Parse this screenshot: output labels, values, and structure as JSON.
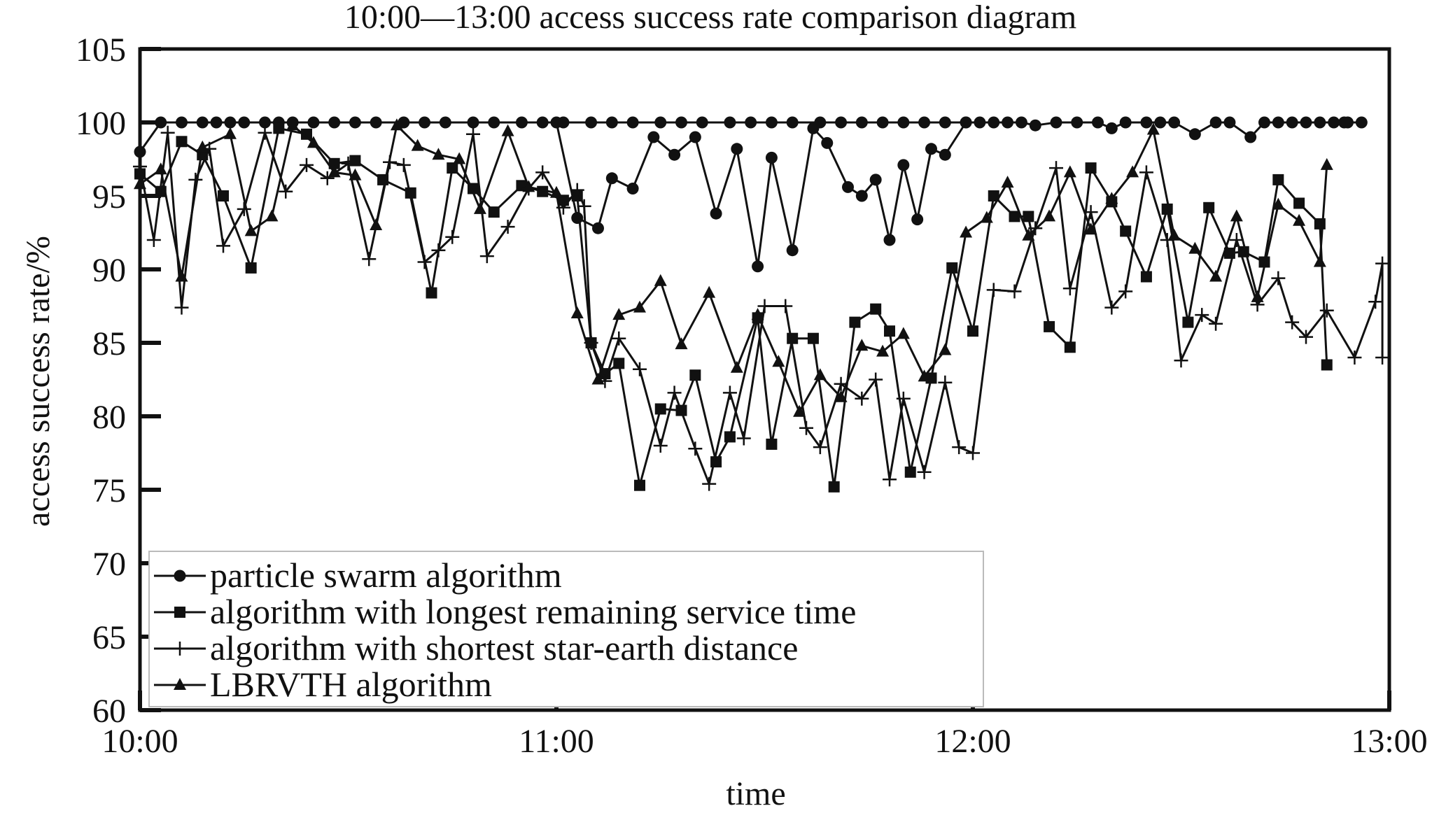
{
  "chart_data": {
    "type": "line",
    "title": "10:00—13:00 access success rate comparison diagram",
    "xlabel": "time",
    "ylabel": "access success rate/%",
    "x_ticks": [
      "10:00",
      "11:00",
      "12:00",
      "13:00"
    ],
    "x_unit": "minutes after 10:00",
    "xlim": [
      0,
      180
    ],
    "ylim": [
      60,
      105
    ],
    "y_ticks": [
      60,
      65,
      70,
      75,
      80,
      85,
      90,
      95,
      100,
      105
    ],
    "grid": false,
    "legend_position": "bottom-left",
    "series": [
      {
        "name": "particle swarm algorithm",
        "marker": "circle",
        "points": [
          [
            0,
            98
          ],
          [
            3,
            100
          ],
          [
            6,
            100
          ],
          [
            9,
            100
          ],
          [
            11,
            100
          ],
          [
            13,
            100
          ],
          [
            15,
            100
          ],
          [
            18,
            100
          ],
          [
            20,
            100
          ],
          [
            22,
            100
          ],
          [
            25,
            100
          ],
          [
            28,
            100
          ],
          [
            31,
            100
          ],
          [
            34,
            100
          ],
          [
            38,
            100
          ],
          [
            41,
            100
          ],
          [
            44,
            100
          ],
          [
            48,
            100
          ],
          [
            51,
            100
          ],
          [
            55,
            100
          ],
          [
            58,
            100
          ],
          [
            61,
            100
          ],
          [
            65,
            100
          ],
          [
            68,
            100
          ],
          [
            71,
            100
          ],
          [
            75,
            100
          ],
          [
            78,
            100
          ],
          [
            81,
            100
          ],
          [
            85,
            100
          ],
          [
            88,
            100
          ],
          [
            91,
            100
          ],
          [
            94,
            100
          ],
          [
            98,
            100
          ],
          [
            101,
            100
          ],
          [
            104,
            100
          ],
          [
            107,
            100
          ],
          [
            110,
            100
          ],
          [
            113,
            100
          ],
          [
            116,
            100
          ],
          [
            119,
            100
          ],
          [
            60,
            100
          ],
          [
            63,
            93.5
          ],
          [
            66,
            92.8
          ],
          [
            68,
            96.2
          ],
          [
            71,
            95.5
          ],
          [
            74,
            99
          ],
          [
            77,
            97.8
          ],
          [
            80,
            99
          ],
          [
            83,
            93.8
          ],
          [
            86,
            98.2
          ],
          [
            89,
            90.2
          ],
          [
            91,
            97.6
          ],
          [
            94,
            91.3
          ],
          [
            97,
            99.6
          ],
          [
            99,
            98.6
          ],
          [
            102,
            95.6
          ],
          [
            104,
            95
          ],
          [
            106,
            96.1
          ],
          [
            108,
            92
          ],
          [
            110,
            97.1
          ],
          [
            112,
            93.4
          ],
          [
            114,
            98.2
          ],
          [
            116,
            97.8
          ],
          [
            119,
            100
          ],
          [
            121,
            100
          ],
          [
            123,
            100
          ],
          [
            125,
            100
          ],
          [
            127,
            100
          ],
          [
            129,
            99.8
          ],
          [
            132,
            100
          ],
          [
            135,
            100
          ],
          [
            138,
            100
          ],
          [
            140,
            99.6
          ],
          [
            142,
            100
          ],
          [
            145,
            100
          ],
          [
            147,
            100
          ],
          [
            149,
            100
          ],
          [
            152,
            99.2
          ],
          [
            155,
            100
          ],
          [
            157,
            100
          ],
          [
            160,
            99
          ],
          [
            162,
            100
          ],
          [
            164,
            100
          ],
          [
            166,
            100
          ],
          [
            168,
            100
          ],
          [
            170,
            100
          ],
          [
            172,
            100
          ],
          [
            174,
            100
          ],
          [
            176,
            100
          ],
          [
            173.5,
            100
          ]
        ]
      },
      {
        "name": "algorithm with longest remaining service time",
        "marker": "square",
        "points": [
          [
            0,
            96.5
          ],
          [
            3,
            95.3
          ],
          [
            6,
            98.7
          ],
          [
            9,
            97.8
          ],
          [
            12,
            95
          ],
          [
            16,
            90.1
          ],
          [
            20,
            99.6
          ],
          [
            24,
            99.2
          ],
          [
            28,
            97.2
          ],
          [
            31,
            97.4
          ],
          [
            35,
            96.1
          ],
          [
            39,
            95.2
          ],
          [
            42,
            88.4
          ],
          [
            45,
            96.9
          ],
          [
            48,
            95.5
          ],
          [
            51,
            93.9
          ],
          [
            55,
            95.7
          ],
          [
            58,
            95.3
          ],
          [
            61,
            94.7
          ],
          [
            63,
            95
          ],
          [
            65,
            85
          ],
          [
            67,
            82.9
          ],
          [
            69,
            83.6
          ],
          [
            72,
            75.3
          ],
          [
            75,
            80.5
          ],
          [
            78,
            80.4
          ],
          [
            80,
            82.8
          ],
          [
            83,
            76.9
          ],
          [
            85,
            78.6
          ],
          [
            89,
            86.7
          ],
          [
            91,
            78.1
          ],
          [
            94,
            85.3
          ],
          [
            97,
            85.3
          ],
          [
            100,
            75.2
          ],
          [
            103,
            86.4
          ],
          [
            106,
            87.3
          ],
          [
            108,
            85.8
          ],
          [
            111,
            76.2
          ],
          [
            114,
            82.6
          ],
          [
            117,
            90.1
          ],
          [
            120,
            85.8
          ],
          [
            123,
            95
          ],
          [
            126,
            93.6
          ],
          [
            128,
            93.6
          ],
          [
            131,
            86.1
          ],
          [
            134,
            84.7
          ],
          [
            137,
            96.9
          ],
          [
            140,
            94.6
          ],
          [
            142,
            92.6
          ],
          [
            145,
            89.5
          ],
          [
            148,
            94.1
          ],
          [
            151,
            86.4
          ],
          [
            154,
            94.2
          ],
          [
            157,
            91.1
          ],
          [
            159,
            91.2
          ],
          [
            162,
            90.5
          ],
          [
            164,
            96.1
          ],
          [
            167,
            94.5
          ],
          [
            170,
            93.1
          ],
          [
            171,
            83.5
          ]
        ]
      },
      {
        "name": "algorithm with shortest star-earth distance",
        "marker": "plus",
        "points": [
          [
            0,
            97
          ],
          [
            2,
            92
          ],
          [
            4,
            99.3
          ],
          [
            6,
            87.4
          ],
          [
            8,
            96.1
          ],
          [
            10,
            98.2
          ],
          [
            12,
            91.6
          ],
          [
            15,
            94.1
          ],
          [
            18,
            99.3
          ],
          [
            21,
            95.3
          ],
          [
            24,
            97.1
          ],
          [
            27,
            96.2
          ],
          [
            30,
            97.2
          ],
          [
            33,
            90.7
          ],
          [
            36,
            97.3
          ],
          [
            38,
            97.1
          ],
          [
            41,
            90.5
          ],
          [
            43,
            91.3
          ],
          [
            45,
            92.2
          ],
          [
            48,
            99.2
          ],
          [
            50,
            90.9
          ],
          [
            53,
            92.9
          ],
          [
            56,
            95.5
          ],
          [
            58,
            96.6
          ],
          [
            61,
            94.2
          ],
          [
            63,
            95.4
          ],
          [
            64,
            94.3
          ],
          [
            65,
            85
          ],
          [
            67,
            82.4
          ],
          [
            69,
            85.3
          ],
          [
            72,
            83.2
          ],
          [
            75,
            78
          ],
          [
            77,
            81.6
          ],
          [
            80,
            77.8
          ],
          [
            82,
            75.4
          ],
          [
            85,
            81.6
          ],
          [
            87,
            78.5
          ],
          [
            90,
            87.5
          ],
          [
            93,
            87.5
          ],
          [
            96,
            79.2
          ],
          [
            98,
            77.9
          ],
          [
            101,
            82.2
          ],
          [
            104,
            81.2
          ],
          [
            106,
            82.5
          ],
          [
            108,
            75.7
          ],
          [
            110,
            81.2
          ],
          [
            113,
            76.2
          ],
          [
            116,
            82.3
          ],
          [
            118,
            77.9
          ],
          [
            120,
            77.5
          ],
          [
            123,
            88.6
          ],
          [
            126,
            88.5
          ],
          [
            129,
            92.8
          ],
          [
            132,
            96.9
          ],
          [
            134,
            88.7
          ],
          [
            137,
            93.9
          ],
          [
            140,
            87.4
          ],
          [
            142,
            88.5
          ],
          [
            145,
            96.6
          ],
          [
            148,
            92
          ],
          [
            150,
            83.8
          ],
          [
            153,
            86.9
          ],
          [
            155,
            86.3
          ],
          [
            158,
            92
          ],
          [
            161,
            87.6
          ],
          [
            164,
            89.4
          ],
          [
            166,
            86.4
          ],
          [
            168,
            85.4
          ],
          [
            171,
            87.2
          ],
          [
            175,
            84
          ],
          [
            178,
            87.8
          ],
          [
            179,
            90.4
          ],
          [
            179,
            84
          ]
        ]
      },
      {
        "name": "LBRVTH algorithm",
        "marker": "triangle",
        "points": [
          [
            0,
            95.8
          ],
          [
            3,
            96.8
          ],
          [
            6,
            89.5
          ],
          [
            9,
            98.3
          ],
          [
            13,
            99.2
          ],
          [
            16,
            92.6
          ],
          [
            19,
            93.6
          ],
          [
            22,
            99.8
          ],
          [
            25,
            98.6
          ],
          [
            28,
            96.6
          ],
          [
            31,
            96.4
          ],
          [
            34,
            93
          ],
          [
            37,
            99.8
          ],
          [
            40,
            98.4
          ],
          [
            43,
            97.8
          ],
          [
            46,
            97.5
          ],
          [
            49,
            94.1
          ],
          [
            53,
            99.4
          ],
          [
            56,
            95.6
          ],
          [
            60,
            95.2
          ],
          [
            63,
            87
          ],
          [
            66,
            82.5
          ],
          [
            69,
            86.9
          ],
          [
            72,
            87.4
          ],
          [
            75,
            89.2
          ],
          [
            78,
            84.9
          ],
          [
            82,
            88.4
          ],
          [
            86,
            83.3
          ],
          [
            89,
            86.9
          ],
          [
            92,
            83.7
          ],
          [
            95,
            80.3
          ],
          [
            98,
            82.8
          ],
          [
            101,
            81.3
          ],
          [
            104,
            84.8
          ],
          [
            107,
            84.4
          ],
          [
            110,
            85.6
          ],
          [
            113,
            82.7
          ],
          [
            116,
            84.5
          ],
          [
            119,
            92.5
          ],
          [
            122,
            93.5
          ],
          [
            125,
            95.9
          ],
          [
            128,
            92.3
          ],
          [
            131,
            93.6
          ],
          [
            134,
            96.6
          ],
          [
            137,
            92.7
          ],
          [
            140,
            94.8
          ],
          [
            143,
            96.6
          ],
          [
            146,
            99.5
          ],
          [
            149,
            92.3
          ],
          [
            152,
            91.4
          ],
          [
            155,
            89.5
          ],
          [
            158,
            93.6
          ],
          [
            161,
            88.1
          ],
          [
            164,
            94.4
          ],
          [
            167,
            93.3
          ],
          [
            170,
            90.5
          ],
          [
            171,
            97.1
          ]
        ]
      }
    ]
  }
}
